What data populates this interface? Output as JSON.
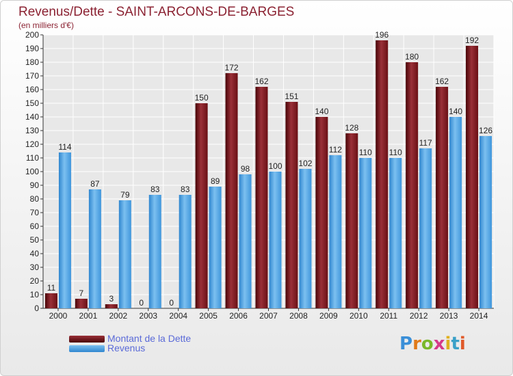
{
  "header": {
    "title": "Revenus/Dette - SAINT-ARCONS-DE-BARGES",
    "subtitle": "(en milliers d'€)"
  },
  "legend": {
    "items": [
      {
        "label": "Montant de la Dette",
        "color": "#6e0f14"
      },
      {
        "label": "Revenus",
        "color": "#4aa3e6"
      }
    ]
  },
  "logo": {
    "text": "Proxiti"
  },
  "chart_data": {
    "type": "bar",
    "title": "Revenus/Dette - SAINT-ARCONS-DE-BARGES",
    "subtitle": "(en milliers d'€)",
    "categories": [
      "2000",
      "2001",
      "2002",
      "2003",
      "2004",
      "2005",
      "2006",
      "2007",
      "2008",
      "2009",
      "2010",
      "2011",
      "2012",
      "2013",
      "2014"
    ],
    "series": [
      {
        "name": "Montant de la Dette",
        "color": "#7a1a1e",
        "values": [
          11,
          7,
          3,
          0,
          0,
          150,
          172,
          162,
          151,
          140,
          128,
          196,
          180,
          162,
          192
        ]
      },
      {
        "name": "Revenus",
        "color": "#4aa3e6",
        "values": [
          114,
          87,
          79,
          83,
          83,
          89,
          98,
          100,
          102,
          112,
          110,
          110,
          117,
          140,
          126
        ]
      }
    ],
    "ylim": [
      0,
      200
    ],
    "yticks": [
      0,
      10,
      20,
      30,
      40,
      50,
      60,
      70,
      80,
      90,
      100,
      110,
      120,
      130,
      140,
      150,
      160,
      170,
      180,
      190,
      200
    ],
    "grid": true,
    "legend_position": "bottom-left"
  }
}
